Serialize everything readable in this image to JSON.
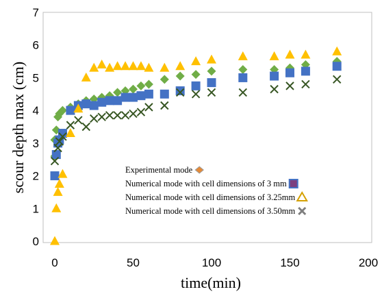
{
  "chart_data": {
    "type": "scatter",
    "title": "",
    "xlabel": "time(min)",
    "ylabel": "scour depth max (cm)",
    "xlim": [
      0,
      200
    ],
    "ylim": [
      0,
      7
    ],
    "xticks": [
      "0",
      "50",
      "100",
      "150",
      "200"
    ],
    "yticks": [
      "0",
      "1",
      "2",
      "3",
      "4",
      "5",
      "6",
      "7"
    ],
    "grid": false,
    "legend_position": "center-bottom",
    "series": [
      {
        "name": "Experimental mode",
        "marker": "diamond",
        "color": "#70ad47",
        "points": [
          [
            0,
            2.6
          ],
          [
            0,
            3.1
          ],
          [
            1,
            3.4
          ],
          [
            2,
            3.8
          ],
          [
            3,
            3.9
          ],
          [
            5,
            4.0
          ],
          [
            10,
            4.1
          ],
          [
            15,
            4.2
          ],
          [
            20,
            4.3
          ],
          [
            25,
            4.35
          ],
          [
            30,
            4.4
          ],
          [
            35,
            4.45
          ],
          [
            40,
            4.55
          ],
          [
            45,
            4.6
          ],
          [
            50,
            4.65
          ],
          [
            55,
            4.75
          ],
          [
            60,
            4.8
          ],
          [
            70,
            4.95
          ],
          [
            80,
            5.05
          ],
          [
            90,
            5.1
          ],
          [
            100,
            5.2
          ],
          [
            120,
            5.25
          ],
          [
            140,
            5.25
          ],
          [
            150,
            5.3
          ],
          [
            160,
            5.4
          ],
          [
            180,
            5.5
          ]
        ]
      },
      {
        "name": "Numerical mode with cell dimensions of 3 mm",
        "marker": "square",
        "color": "#4472c4",
        "points": [
          [
            0,
            2.0
          ],
          [
            1,
            2.65
          ],
          [
            2,
            3.0
          ],
          [
            3,
            3.1
          ],
          [
            5,
            3.3
          ],
          [
            10,
            4.0
          ],
          [
            15,
            4.15
          ],
          [
            20,
            4.2
          ],
          [
            25,
            4.15
          ],
          [
            30,
            4.25
          ],
          [
            35,
            4.3
          ],
          [
            40,
            4.3
          ],
          [
            45,
            4.4
          ],
          [
            50,
            4.4
          ],
          [
            55,
            4.45
          ],
          [
            60,
            4.5
          ],
          [
            70,
            4.5
          ],
          [
            80,
            4.6
          ],
          [
            90,
            4.75
          ],
          [
            100,
            4.85
          ],
          [
            120,
            5.0
          ],
          [
            140,
            5.05
          ],
          [
            150,
            5.15
          ],
          [
            160,
            5.2
          ],
          [
            180,
            5.35
          ]
        ]
      },
      {
        "name": "Numerical mode with cell dimensions of 3.25mm",
        "marker": "triangle",
        "color": "#ffc000",
        "points": [
          [
            0,
            0.0
          ],
          [
            1,
            1.0
          ],
          [
            2,
            1.5
          ],
          [
            3,
            1.75
          ],
          [
            5,
            2.05
          ],
          [
            10,
            3.3
          ],
          [
            15,
            4.05
          ],
          [
            20,
            5.0
          ],
          [
            25,
            5.3
          ],
          [
            30,
            5.4
          ],
          [
            35,
            5.3
          ],
          [
            40,
            5.35
          ],
          [
            45,
            5.35
          ],
          [
            50,
            5.35
          ],
          [
            55,
            5.35
          ],
          [
            60,
            5.3
          ],
          [
            70,
            5.3
          ],
          [
            80,
            5.35
          ],
          [
            90,
            5.5
          ],
          [
            100,
            5.55
          ],
          [
            120,
            5.65
          ],
          [
            140,
            5.65
          ],
          [
            150,
            5.7
          ],
          [
            160,
            5.7
          ],
          [
            180,
            5.8
          ]
        ]
      },
      {
        "name": "Numerical mode with cell dimensions of 3.50mm",
        "marker": "x",
        "color": "#375623",
        "points": [
          [
            0,
            2.45
          ],
          [
            2,
            2.85
          ],
          [
            3,
            3.05
          ],
          [
            5,
            3.2
          ],
          [
            10,
            3.55
          ],
          [
            15,
            3.7
          ],
          [
            20,
            3.5
          ],
          [
            25,
            3.75
          ],
          [
            30,
            3.8
          ],
          [
            35,
            3.85
          ],
          [
            40,
            3.85
          ],
          [
            45,
            3.85
          ],
          [
            50,
            3.9
          ],
          [
            55,
            3.95
          ],
          [
            60,
            4.1
          ],
          [
            70,
            4.15
          ],
          [
            80,
            4.55
          ],
          [
            90,
            4.5
          ],
          [
            100,
            4.55
          ],
          [
            120,
            4.55
          ],
          [
            140,
            4.65
          ],
          [
            150,
            4.75
          ],
          [
            160,
            4.8
          ],
          [
            180,
            4.95
          ]
        ]
      }
    ]
  }
}
